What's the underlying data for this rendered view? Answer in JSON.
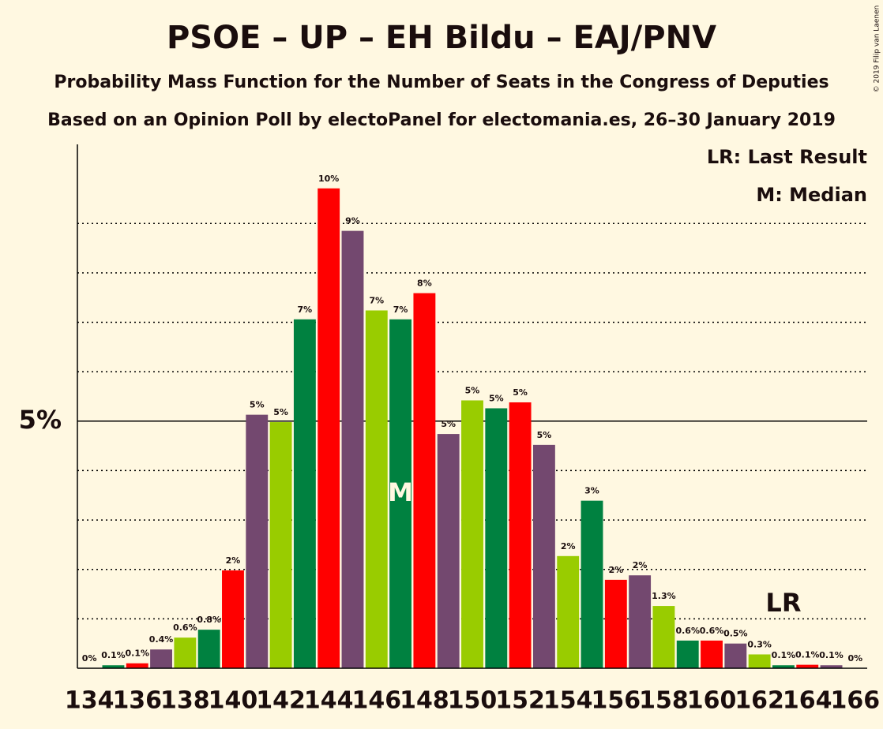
{
  "chart_data": {
    "type": "bar",
    "title": "PSOE – UP – EH Bildu – EAJ/PNV",
    "subtitle": "Probability Mass Function for the Number of Seats in the Congress of Deputies",
    "subtitle2": "Based on an Opinion Poll by electoPanel for electomania.es, 26–30 January 2019",
    "copyright": "© 2019 Filip van Laenen",
    "legend": [
      "LR: Last Result",
      "M: Median"
    ],
    "x": [
      134,
      135,
      136,
      137,
      138,
      139,
      140,
      141,
      142,
      143,
      144,
      145,
      146,
      147,
      148,
      149,
      150,
      151,
      152,
      153,
      154,
      155,
      156,
      157,
      158,
      159,
      160,
      161,
      162,
      163,
      164,
      165,
      166
    ],
    "values": [
      0,
      0.06,
      0.1,
      0.38,
      0.62,
      0.78,
      1.98,
      5.13,
      4.98,
      7.06,
      9.71,
      8.85,
      7.24,
      7.06,
      7.59,
      4.74,
      5.42,
      5.26,
      5.38,
      4.52,
      2.27,
      3.39,
      1.79,
      1.88,
      1.26,
      0.56,
      0.56,
      0.5,
      0.28,
      0.06,
      0.07,
      0.06,
      0
    ],
    "value_labels": [
      "0%",
      "0.1%",
      "0.1%",
      "0.4%",
      "0.6%",
      "0.8%",
      "2%",
      "5%",
      "5%",
      "7%",
      "10%",
      "9%",
      "7%",
      "7%",
      "8%",
      "5%",
      "5%",
      "5%",
      "5%",
      "5%",
      "2%",
      "3%",
      "2%",
      "2%",
      "1.3%",
      "0.6%",
      "0.6%",
      "0.5%",
      "0.3%",
      "0.1%",
      "0.1%",
      "0.1%",
      "0%"
    ],
    "colors": [
      "#99cc00",
      "#008140",
      "#ff0000",
      "#73486f",
      "#99cc00",
      "#008140",
      "#ff0000",
      "#73486f",
      "#99cc00",
      "#008140",
      "#ff0000",
      "#73486f",
      "#99cc00",
      "#008140",
      "#ff0000",
      "#73486f",
      "#99cc00",
      "#008140",
      "#ff0000",
      "#73486f",
      "#99cc00",
      "#008140",
      "#ff0000",
      "#73486f",
      "#99cc00",
      "#008140",
      "#ff0000",
      "#73486f",
      "#99cc00",
      "#008140",
      "#ff0000",
      "#73486f",
      "#99cc00"
    ],
    "xlim": [
      133.5,
      166.5
    ],
    "xticks": [
      134,
      136,
      138,
      140,
      142,
      144,
      146,
      148,
      150,
      152,
      154,
      156,
      158,
      160,
      162,
      164,
      166
    ],
    "ylim": [
      0,
      10.6
    ],
    "yticks": [
      {
        "value": 5,
        "label": "5%"
      }
    ],
    "minor_yticks": [
      1,
      2,
      3,
      4,
      6,
      7,
      8,
      9
    ],
    "markers": [
      {
        "text": "M",
        "x": 147
      },
      {
        "text": "LR",
        "x": 163
      }
    ]
  }
}
